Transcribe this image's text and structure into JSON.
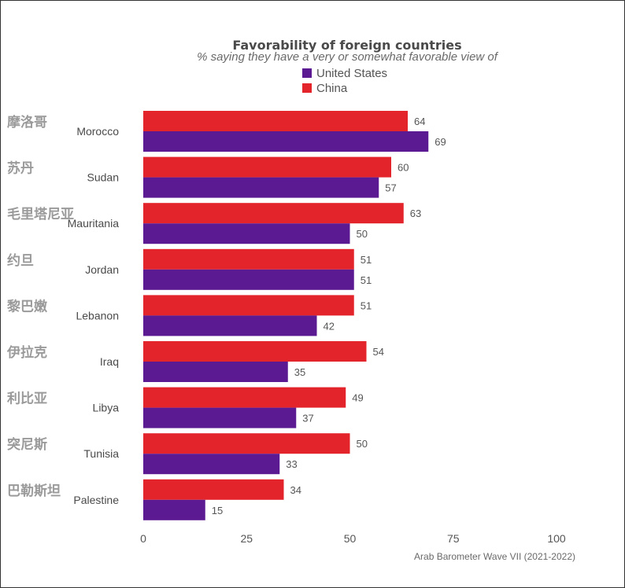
{
  "chart_data": {
    "type": "bar",
    "orientation": "horizontal",
    "title": "Favorability of foreign countries",
    "subtitle": "% saying they have a very or somewhat favorable view of",
    "categories": [
      "Morocco",
      "Sudan",
      "Mauritania",
      "Jordan",
      "Lebanon",
      "Iraq",
      "Libya",
      "Tunisia",
      "Palestine"
    ],
    "chinese_labels": [
      "摩洛哥",
      "苏丹",
      "毛里塔尼亚",
      "约旦",
      "黎巴嫩",
      "伊拉克",
      "利比亚",
      "突尼斯",
      "巴勒斯坦"
    ],
    "series": [
      {
        "name": "China",
        "color": "#e3242b",
        "values": [
          64,
          60,
          63,
          51,
          51,
          54,
          49,
          50,
          34
        ]
      },
      {
        "name": "United States",
        "color": "#5b1a91",
        "values": [
          69,
          57,
          50,
          51,
          42,
          35,
          37,
          33,
          15
        ]
      }
    ],
    "legend_order": [
      "United States",
      "China"
    ],
    "legend_position": "top",
    "xlim": [
      0,
      100
    ],
    "xticks": [
      0,
      25,
      50,
      75,
      100
    ],
    "grid": false,
    "source": "Arab Barometer Wave VII (2021-2022)"
  }
}
